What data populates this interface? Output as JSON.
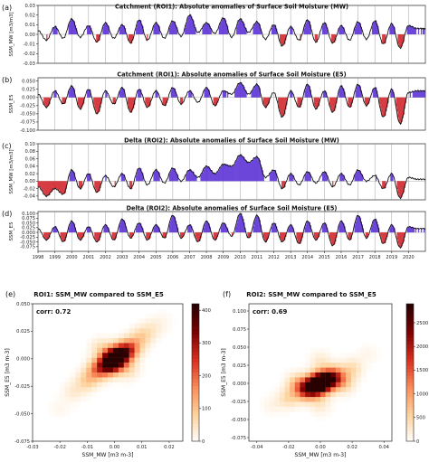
{
  "chart_data": [
    {
      "type": "area",
      "panel_label": "(a)",
      "title": "Catchment (ROI1): Absolute anomalies of Surface Soil Moisture (MW)",
      "ylabel": "SSM_MW [m3/m3]",
      "ylim": [
        -0.03,
        0.03
      ],
      "yticks": [
        "0.03",
        "0.02",
        "0.01",
        "0.00",
        "-0.01",
        "-0.02",
        "-0.03"
      ],
      "x": [
        1998,
        1998.5,
        1999,
        1999.5,
        2000,
        2000.5,
        2001,
        2001.5,
        2002,
        2002.5,
        2003,
        2003.5,
        2004,
        2004.5,
        2005,
        2005.5,
        2006,
        2006.5,
        2007,
        2007.5,
        2008,
        2008.5,
        2009,
        2009.5,
        2010,
        2010.5,
        2011,
        2011.5,
        2012,
        2012.5,
        2013,
        2013.5,
        2014,
        2014.5,
        2015,
        2015.5,
        2016,
        2016.5,
        2017,
        2017.5,
        2018,
        2018.5,
        2019,
        2019.5,
        2020,
        2020.5
      ],
      "values": [
        0.004,
        -0.006,
        0.008,
        -0.004,
        0.016,
        -0.003,
        0.009,
        -0.008,
        0.012,
        -0.004,
        0.01,
        -0.009,
        0.015,
        -0.006,
        0.012,
        -0.004,
        0.014,
        -0.002,
        0.02,
        0.002,
        0.012,
        0.001,
        0.017,
        -0.003,
        0.016,
        0.002,
        0.013,
        -0.005,
        0.01,
        -0.012,
        0.008,
        -0.006,
        0.015,
        -0.008,
        0.012,
        -0.009,
        0.009,
        -0.006,
        0.013,
        -0.005,
        0.014,
        -0.01,
        0.011,
        -0.014,
        0.009,
        0.006
      ],
      "xlim": [
        1998,
        2021
      ]
    },
    {
      "type": "area",
      "panel_label": "(b)",
      "title": "Catchment (ROI1): Absolute anomalies of Surface Soil Moisture (E5)",
      "ylabel": "SSM_E5",
      "ylim": [
        -0.1,
        0.06
      ],
      "yticks": [
        "0.050",
        "0.025",
        "0.000",
        "-0.025",
        "-0.050",
        "-0.075",
        "-0.100"
      ],
      "x": [
        1998,
        1998.5,
        1999,
        1999.5,
        2000,
        2000.5,
        2001,
        2001.5,
        2002,
        2002.5,
        2003,
        2003.5,
        2004,
        2004.5,
        2005,
        2005.5,
        2006,
        2006.5,
        2007,
        2007.5,
        2008,
        2008.5,
        2009,
        2009.5,
        2010,
        2010.5,
        2011,
        2011.5,
        2012,
        2012.5,
        2013,
        2013.5,
        2014,
        2014.5,
        2015,
        2015.5,
        2016,
        2016.5,
        2017,
        2017.5,
        2018,
        2018.5,
        2019,
        2019.5,
        2020,
        2020.5
      ],
      "values": [
        0.01,
        -0.03,
        0.02,
        -0.02,
        0.035,
        -0.035,
        0.025,
        -0.05,
        0.02,
        -0.02,
        0.03,
        -0.045,
        0.025,
        -0.03,
        0.02,
        -0.025,
        0.03,
        -0.02,
        0.02,
        -0.015,
        0.03,
        -0.025,
        0.02,
        0.01,
        0.045,
        0.01,
        0.04,
        -0.03,
        0.015,
        -0.06,
        0.02,
        -0.03,
        0.04,
        -0.035,
        0.02,
        -0.045,
        0.035,
        -0.03,
        0.04,
        -0.025,
        0.03,
        -0.06,
        0.025,
        -0.08,
        0.015,
        0.02
      ],
      "xlim": [
        1998,
        2021
      ]
    },
    {
      "type": "area",
      "panel_label": "(c)",
      "title": "Delta (ROI2): Absolute anomalies of Surface Soil Moisture (MW)",
      "ylabel": "SSM_MW [m3/m3]",
      "ylim": [
        -0.05,
        0.1
      ],
      "yticks": [
        "0.10",
        "0.08",
        "0.06",
        "0.04",
        "0.02",
        "0.00",
        "-0.02",
        "-0.04"
      ],
      "x": [
        1998,
        1998.5,
        1999,
        1999.5,
        2000,
        2000.5,
        2001,
        2001.5,
        2002,
        2002.5,
        2003,
        2003.5,
        2004,
        2004.5,
        2005,
        2005.5,
        2006,
        2006.5,
        2007,
        2007.5,
        2008,
        2008.5,
        2009,
        2009.5,
        2010,
        2010.5,
        2011,
        2011.5,
        2012,
        2012.5,
        2013,
        2013.5,
        2014,
        2014.5,
        2015,
        2015.5,
        2016,
        2016.5,
        2017,
        2017.5,
        2018,
        2018.5,
        2019,
        2019.5,
        2020,
        2020.5
      ],
      "values": [
        -0.015,
        -0.04,
        -0.02,
        -0.035,
        0.03,
        -0.02,
        0.02,
        -0.03,
        0.015,
        -0.015,
        0.02,
        -0.02,
        0.035,
        -0.01,
        0.03,
        -0.005,
        0.035,
        0.0,
        0.03,
        0.01,
        0.04,
        0.02,
        0.045,
        0.04,
        0.07,
        0.05,
        0.065,
        0.01,
        0.03,
        -0.02,
        0.02,
        -0.01,
        0.025,
        -0.005,
        0.025,
        -0.015,
        0.02,
        -0.01,
        0.03,
        0.0,
        0.015,
        -0.02,
        0.02,
        -0.045,
        0.01,
        0.005
      ],
      "xlim": [
        1998,
        2021
      ]
    },
    {
      "type": "area",
      "panel_label": "(d)",
      "title": "Delta (ROI2): Absolute anomalies of Surface Soil Moisture (E5)",
      "ylabel": "SSM_E5",
      "ylim": [
        -0.1,
        0.11
      ],
      "yticks": [
        "0.100",
        "0.075",
        "0.050",
        "0.025",
        "0.000",
        "-0.025",
        "-0.050",
        "-0.075"
      ],
      "x": [
        1998,
        1998.5,
        1999,
        1999.5,
        2000,
        2000.5,
        2001,
        2001.5,
        2002,
        2002.5,
        2003,
        2003.5,
        2004,
        2004.5,
        2005,
        2005.5,
        2006,
        2006.5,
        2007,
        2007.5,
        2008,
        2008.5,
        2009,
        2009.5,
        2010,
        2010.5,
        2011,
        2011.5,
        2012,
        2012.5,
        2013,
        2013.5,
        2014,
        2014.5,
        2015,
        2015.5,
        2016,
        2016.5,
        2017,
        2017.5,
        2018,
        2018.5,
        2019,
        2019.5,
        2020,
        2020.5
      ],
      "values": [
        0.02,
        -0.04,
        0.03,
        -0.05,
        0.06,
        -0.04,
        0.03,
        -0.05,
        0.04,
        -0.04,
        0.07,
        -0.03,
        0.05,
        -0.04,
        0.04,
        -0.03,
        0.09,
        -0.03,
        0.04,
        -0.05,
        0.06,
        -0.04,
        0.05,
        -0.02,
        0.1,
        -0.03,
        0.09,
        -0.05,
        0.05,
        -0.05,
        0.04,
        -0.06,
        0.06,
        -0.04,
        0.05,
        -0.07,
        0.06,
        -0.04,
        0.09,
        -0.03,
        0.07,
        -0.06,
        0.04,
        -0.08,
        0.03,
        0.02
      ],
      "xlim": [
        1998,
        2021
      ],
      "xticks": [
        "1998",
        "1999",
        "2000",
        "2001",
        "2002",
        "2003",
        "2004",
        "2005",
        "2006",
        "2007",
        "2008",
        "2009",
        "2010",
        "2011",
        "2012",
        "2013",
        "2014",
        "2015",
        "2016",
        "2017",
        "2018",
        "2019",
        "2020"
      ]
    },
    {
      "type": "heatmap",
      "panel_label": "(e)",
      "title": "ROI1: SSM_MW compared to SSM_E5",
      "annotation": "corr: 0.72",
      "xlabel": "SSM_MW [m3 m-3]",
      "ylabel": "SSM_E5 [m3 m-3]",
      "xlim": [
        -0.03,
        0.025
      ],
      "ylim": [
        -0.075,
        0.05
      ],
      "xticks": [
        "-0.03",
        "-0.02",
        "-0.01",
        "0.00",
        "0.01",
        "0.02"
      ],
      "yticks": [
        "0.050",
        "0.025",
        "0.000",
        "-0.025",
        "-0.050",
        "-0.075"
      ],
      "colorbar": {
        "min": 0,
        "max": 420,
        "ticks": [
          "400",
          "300",
          "200",
          "100",
          "0"
        ]
      },
      "correlation": 0.72,
      "centers": [
        [
          0.0,
          0.0,
          420
        ],
        [
          -0.002,
          -0.005,
          300
        ],
        [
          0.003,
          0.005,
          260
        ],
        [
          -0.006,
          -0.01,
          180
        ],
        [
          0.006,
          0.01,
          160
        ],
        [
          -0.01,
          -0.02,
          90
        ],
        [
          0.01,
          0.02,
          80
        ],
        [
          -0.015,
          -0.03,
          40
        ],
        [
          0.014,
          0.028,
          35
        ],
        [
          -0.02,
          -0.045,
          15
        ],
        [
          0.018,
          0.035,
          12
        ],
        [
          0.005,
          -0.01,
          60
        ],
        [
          -0.005,
          0.01,
          55
        ]
      ]
    },
    {
      "type": "heatmap",
      "panel_label": "(f)",
      "title": "ROI2: SSM_MW compared to SSM_E5",
      "annotation": "corr: 0.69",
      "xlabel": "SSM_MW [m3 m-3]",
      "ylabel": "SSM_E5 [m3 m-3]",
      "xlim": [
        -0.045,
        0.045
      ],
      "ylim": [
        -0.08,
        0.11
      ],
      "xticks": [
        "-0.04",
        "-0.02",
        "0.00",
        "0.02",
        "0.04"
      ],
      "yticks": [
        "0.100",
        "0.075",
        "0.050",
        "0.025",
        "0.000",
        "-0.025",
        "-0.050",
        "-0.075"
      ],
      "colorbar": {
        "min": 0,
        "max": 2900,
        "ticks": [
          "2500",
          "2000",
          "1500",
          "1000",
          "500",
          "0"
        ]
      },
      "correlation": 0.69,
      "centers": [
        [
          0.0,
          0.0,
          2900
        ],
        [
          -0.005,
          -0.005,
          2200
        ],
        [
          0.005,
          0.005,
          1900
        ],
        [
          -0.01,
          -0.01,
          1200
        ],
        [
          0.01,
          0.01,
          1100
        ],
        [
          -0.02,
          -0.02,
          500
        ],
        [
          0.02,
          0.02,
          450
        ],
        [
          -0.03,
          -0.03,
          150
        ],
        [
          0.03,
          0.04,
          120
        ],
        [
          0.0,
          0.03,
          300
        ],
        [
          0.0,
          -0.03,
          280
        ],
        [
          -0.015,
          0.0,
          600
        ],
        [
          0.015,
          0.0,
          550
        ]
      ]
    }
  ],
  "colors": {
    "positive": "#5b2fd6",
    "negative": "#d1232a",
    "line": "#111111",
    "divider": "#888888"
  }
}
